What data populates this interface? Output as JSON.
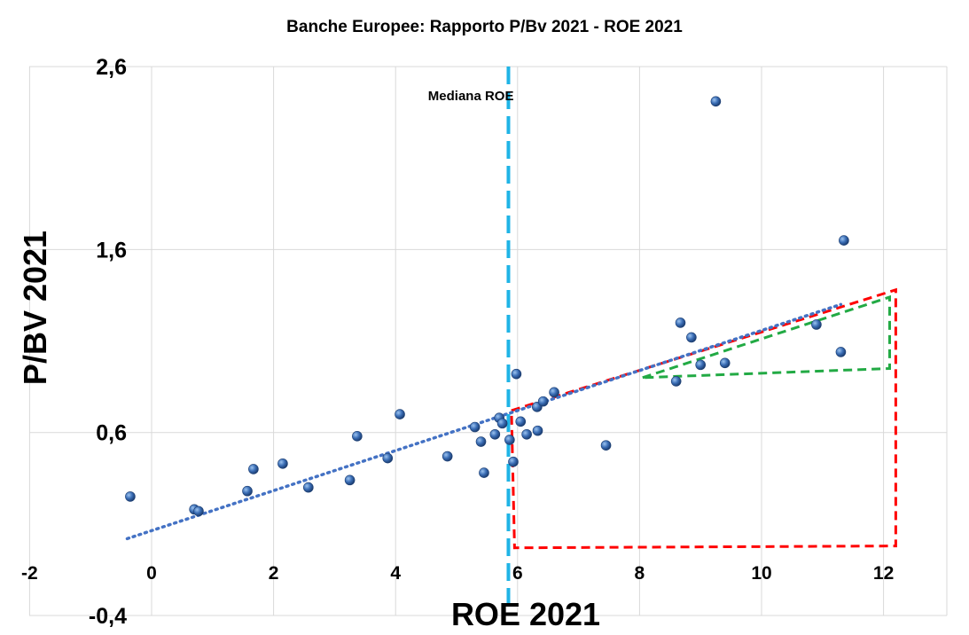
{
  "chart_data": {
    "type": "scatter",
    "title": "Banche Europee: Rapporto P/Bv 2021 - ROE 2021",
    "xlabel": "ROE 2021",
    "ylabel": "P/BV 2021",
    "xlim": [
      -2,
      13
    ],
    "ylim": [
      -0.4,
      2.6
    ],
    "x_ticks": [
      -2,
      0,
      2,
      4,
      6,
      8,
      10,
      12
    ],
    "x_tick_labels": [
      "-2",
      "0",
      "2",
      "4",
      "6",
      "8",
      "10",
      "12"
    ],
    "y_ticks": [
      -0.4,
      0.6,
      1.6,
      2.6
    ],
    "y_tick_labels": [
      "-0,4",
      "0,6",
      "1,6",
      "2,6"
    ],
    "grid": true,
    "legend": "none",
    "point_color": "#3a6db5",
    "points": [
      {
        "x": -0.35,
        "y": 0.25
      },
      {
        "x": 0.7,
        "y": 0.18
      },
      {
        "x": 0.77,
        "y": 0.17
      },
      {
        "x": 1.57,
        "y": 0.28
      },
      {
        "x": 1.67,
        "y": 0.4
      },
      {
        "x": 2.15,
        "y": 0.43
      },
      {
        "x": 2.57,
        "y": 0.3
      },
      {
        "x": 3.25,
        "y": 0.34
      },
      {
        "x": 3.37,
        "y": 0.58
      },
      {
        "x": 3.87,
        "y": 0.46
      },
      {
        "x": 4.07,
        "y": 0.7
      },
      {
        "x": 4.85,
        "y": 0.47
      },
      {
        "x": 5.3,
        "y": 0.63
      },
      {
        "x": 5.4,
        "y": 0.55
      },
      {
        "x": 5.45,
        "y": 0.38
      },
      {
        "x": 5.63,
        "y": 0.59
      },
      {
        "x": 5.7,
        "y": 0.68
      },
      {
        "x": 5.75,
        "y": 0.65
      },
      {
        "x": 5.87,
        "y": 0.56
      },
      {
        "x": 5.93,
        "y": 0.44
      },
      {
        "x": 5.98,
        "y": 0.92
      },
      {
        "x": 6.05,
        "y": 0.66
      },
      {
        "x": 6.15,
        "y": 0.59
      },
      {
        "x": 6.32,
        "y": 0.74
      },
      {
        "x": 6.33,
        "y": 0.61
      },
      {
        "x": 6.42,
        "y": 0.77
      },
      {
        "x": 6.6,
        "y": 0.82
      },
      {
        "x": 7.45,
        "y": 0.53
      },
      {
        "x": 8.6,
        "y": 0.88
      },
      {
        "x": 8.67,
        "y": 1.2
      },
      {
        "x": 8.85,
        "y": 1.12
      },
      {
        "x": 9.0,
        "y": 0.97
      },
      {
        "x": 9.25,
        "y": 2.41
      },
      {
        "x": 9.4,
        "y": 0.98
      },
      {
        "x": 10.9,
        "y": 1.19
      },
      {
        "x": 11.3,
        "y": 1.04
      },
      {
        "x": 11.35,
        "y": 1.65
      }
    ],
    "trendline": {
      "x0": -0.4,
      "y0": 0.02,
      "x1": 11.3,
      "y1": 1.3,
      "style": "dotted",
      "color": "#4472c4"
    },
    "median_line": {
      "x": 5.85,
      "label": "Mediana ROE",
      "color": "#1fb4e6"
    },
    "red_dashed_outline": {
      "color": "#ff0000",
      "vertices": [
        [
          5.9,
          0.72
        ],
        [
          12.2,
          1.38
        ],
        [
          12.2,
          -0.02
        ],
        [
          5.95,
          -0.03
        ],
        [
          5.9,
          0.72
        ]
      ]
    },
    "green_dashed_outline": {
      "color": "#22aa44",
      "vertices": [
        [
          8.05,
          0.9
        ],
        [
          12.1,
          1.34
        ],
        [
          12.1,
          0.95
        ],
        [
          8.05,
          0.9
        ]
      ]
    }
  }
}
